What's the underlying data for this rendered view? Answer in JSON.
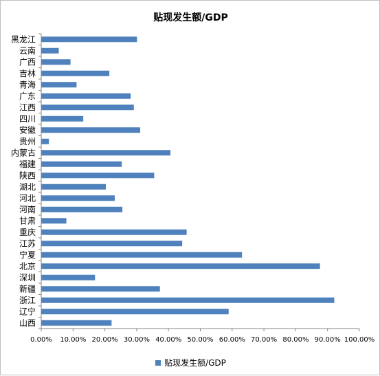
{
  "chart_data": {
    "type": "bar",
    "orientation": "horizontal",
    "title": "贴现发生额/GDP",
    "categories": [
      "黑龙江",
      "云南",
      "广西",
      "吉林",
      "青海",
      "广东",
      "江西",
      "四川",
      "安徽",
      "贵州",
      "内蒙古",
      "福建",
      "陕西",
      "湖北",
      "河北",
      "河南",
      "甘肃",
      "重庆",
      "江苏",
      "宁夏",
      "北京",
      "深圳",
      "新疆",
      "浙江",
      "辽宁",
      "山西"
    ],
    "series": [
      {
        "name": "贴现发生额/GDP",
        "values": [
          0.3,
          0.054,
          0.091,
          0.213,
          0.11,
          0.28,
          0.29,
          0.131,
          0.31,
          0.023,
          0.405,
          0.252,
          0.354,
          0.202,
          0.23,
          0.254,
          0.078,
          0.456,
          0.442,
          0.63,
          0.875,
          0.168,
          0.372,
          0.92,
          0.588,
          0.22
        ]
      }
    ],
    "xlim": [
      0,
      1.0
    ],
    "x_ticks": [
      "0.00%",
      "10.00%",
      "20.00%",
      "30.00%",
      "40.00%",
      "50.00%",
      "60.00%",
      "70.00%",
      "80.00%",
      "90.00%",
      "100.00%"
    ],
    "grid": false,
    "legend_position": "bottom",
    "bar_color": "#4f81bd"
  }
}
